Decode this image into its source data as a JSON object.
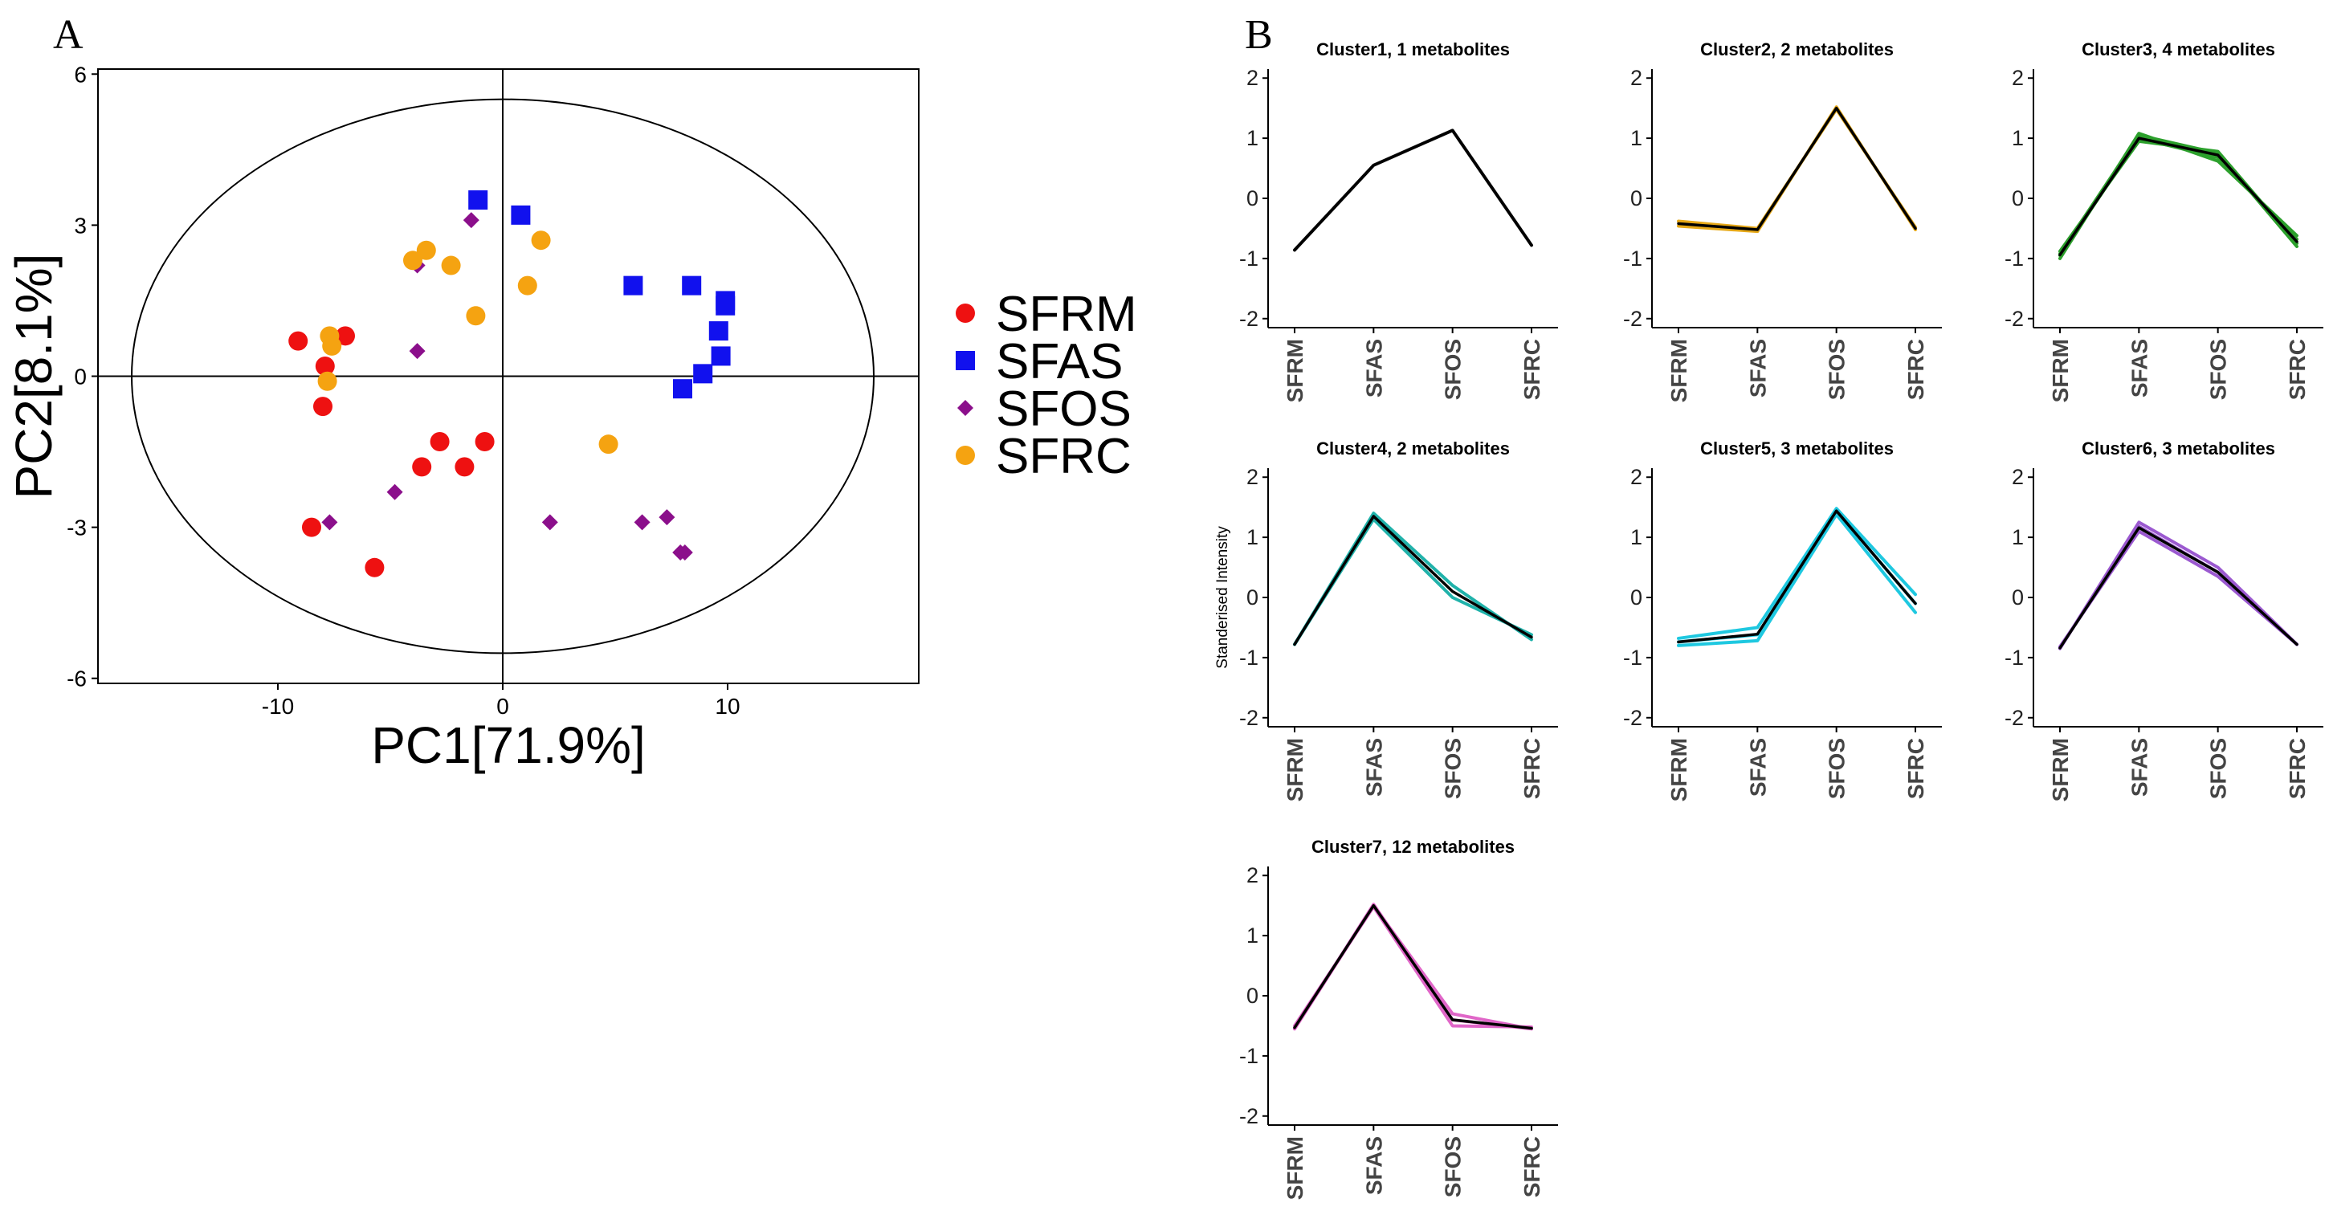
{
  "chart_data": [
    {
      "type": "scatter",
      "panel_label": "A",
      "xlabel": "PC1[71.9%]",
      "ylabel": "PC2[8.1%]",
      "xlim": [
        -18,
        18.5
      ],
      "ylim": [
        -6.1,
        6.1
      ],
      "xticks": [
        -10,
        0,
        10
      ],
      "yticks": [
        -6,
        -3,
        0,
        3,
        6
      ],
      "xtick_labels": [
        "-10",
        "0",
        "10"
      ],
      "ytick_labels": [
        "-6",
        "-3",
        "0",
        "3",
        "6"
      ],
      "ellipse": {
        "rx": 16.5,
        "ry": 5.5
      },
      "legend": [
        "SFRM",
        "SFAS",
        "SFOS",
        "SFRC"
      ],
      "series": [
        {
          "name": "SFRM",
          "color": "#ee1111",
          "marker": "circle",
          "points": [
            [
              -9.1,
              0.7
            ],
            [
              -7,
              0.8
            ],
            [
              -7.9,
              0.2
            ],
            [
              -8,
              -0.6
            ],
            [
              -2.8,
              -1.3
            ],
            [
              -0.8,
              -1.3
            ],
            [
              -3.6,
              -1.8
            ],
            [
              -1.7,
              -1.8
            ],
            [
              -8.5,
              -3.0
            ],
            [
              -5.7,
              -3.8
            ]
          ]
        },
        {
          "name": "SFAS",
          "color": "#1111ee",
          "marker": "square",
          "points": [
            [
              -1.1,
              3.5
            ],
            [
              0.8,
              3.2
            ],
            [
              5.8,
              1.8
            ],
            [
              8.4,
              1.8
            ],
            [
              9.9,
              1.5
            ],
            [
              9.9,
              1.4
            ],
            [
              9.6,
              0.9
            ],
            [
              9.7,
              0.4
            ],
            [
              8.9,
              0.05
            ],
            [
              8.0,
              -0.25
            ]
          ]
        },
        {
          "name": "SFOS",
          "color": "#8b0f8b",
          "marker": "diamond",
          "points": [
            [
              -1.4,
              3.1
            ],
            [
              -3.8,
              2.2
            ],
            [
              -3.8,
              0.5
            ],
            [
              -4.8,
              -2.3
            ],
            [
              -7.7,
              -2.9
            ],
            [
              2.1,
              -2.9
            ],
            [
              6.2,
              -2.9
            ],
            [
              7.3,
              -2.8
            ],
            [
              7.9,
              -3.5
            ],
            [
              8.1,
              -3.5
            ]
          ]
        },
        {
          "name": "SFRC",
          "color": "#f5a311",
          "marker": "circle",
          "points": [
            [
              -3.4,
              2.5
            ],
            [
              -4.0,
              2.3
            ],
            [
              -2.3,
              2.2
            ],
            [
              1.7,
              2.7
            ],
            [
              1.1,
              1.8
            ],
            [
              -1.2,
              1.2
            ],
            [
              -7.7,
              0.8
            ],
            [
              -7.6,
              0.6
            ],
            [
              -7.8,
              -0.1
            ],
            [
              4.7,
              -1.35
            ]
          ]
        }
      ]
    },
    {
      "type": "line",
      "panel_label": "B",
      "title": "Cluster1, 1 metabolites",
      "ylabel": "",
      "categories": [
        "SFRM",
        "SFAS",
        "SFOS",
        "SFRC"
      ],
      "ylim": [
        -2.15,
        2.15
      ],
      "yticks": [
        -2,
        -1,
        0,
        1,
        2
      ],
      "color": "#222222",
      "series": [
        {
          "name": "member",
          "values": [
            -0.86,
            0.55,
            1.13,
            -0.78
          ]
        },
        {
          "name": "mean",
          "values": [
            -0.86,
            0.55,
            1.13,
            -0.78
          ]
        }
      ]
    },
    {
      "type": "line",
      "panel_label": "",
      "title": "Cluster2, 2 metabolites",
      "ylabel": "",
      "categories": [
        "SFRM",
        "SFAS",
        "SFOS",
        "SFRC"
      ],
      "ylim": [
        -2.15,
        2.15
      ],
      "yticks": [
        -2,
        -1,
        0,
        1,
        2
      ],
      "color": "#e6a817",
      "series": [
        {
          "name": "member",
          "values": [
            -0.38,
            -0.5,
            1.48,
            -0.48
          ]
        },
        {
          "name": "member",
          "values": [
            -0.46,
            -0.55,
            1.52,
            -0.52
          ]
        },
        {
          "name": "mean",
          "values": [
            -0.42,
            -0.52,
            1.5,
            -0.5
          ]
        }
      ]
    },
    {
      "type": "line",
      "panel_label": "",
      "title": "Cluster3, 4 metabolites",
      "ylabel": "",
      "categories": [
        "SFRM",
        "SFAS",
        "SFOS",
        "SFRC"
      ],
      "ylim": [
        -2.15,
        2.15
      ],
      "yticks": [
        -2,
        -1,
        0,
        1,
        2
      ],
      "color": "#2ca02c",
      "series": [
        {
          "name": "member",
          "values": [
            -1.0,
            1.08,
            0.62,
            -0.62
          ]
        },
        {
          "name": "member",
          "values": [
            -0.92,
            1.05,
            0.75,
            -0.8
          ]
        },
        {
          "name": "member",
          "values": [
            -0.88,
            0.95,
            0.78,
            -0.75
          ]
        },
        {
          "name": "member",
          "values": [
            -0.95,
            1.0,
            0.68,
            -0.68
          ]
        },
        {
          "name": "mean",
          "values": [
            -0.94,
            1.0,
            0.72,
            -0.72
          ]
        }
      ]
    },
    {
      "type": "line",
      "panel_label": "",
      "title": "Cluster4, 2 metabolites",
      "ylabel": "Standerised Intensity",
      "categories": [
        "SFRM",
        "SFAS",
        "SFOS",
        "SFRC"
      ],
      "ylim": [
        -2.15,
        2.15
      ],
      "yticks": [
        -2,
        -1,
        0,
        1,
        2
      ],
      "color": "#20b2aa",
      "series": [
        {
          "name": "member",
          "values": [
            -0.78,
            1.4,
            0.2,
            -0.7
          ]
        },
        {
          "name": "member",
          "values": [
            -0.78,
            1.3,
            0.0,
            -0.62
          ]
        },
        {
          "name": "mean",
          "values": [
            -0.78,
            1.35,
            0.1,
            -0.66
          ]
        }
      ]
    },
    {
      "type": "line",
      "panel_label": "",
      "title": "Cluster5, 3 metabolites",
      "ylabel": "",
      "categories": [
        "SFRM",
        "SFAS",
        "SFOS",
        "SFRC"
      ],
      "ylim": [
        -2.15,
        2.15
      ],
      "yticks": [
        -2,
        -1,
        0,
        1,
        2
      ],
      "color": "#1ec8e0",
      "series": [
        {
          "name": "member",
          "values": [
            -0.8,
            -0.72,
            1.38,
            -0.25
          ]
        },
        {
          "name": "member",
          "values": [
            -0.68,
            -0.5,
            1.48,
            0.05
          ]
        },
        {
          "name": "member",
          "values": [
            -0.74,
            -0.62,
            1.44,
            -0.1
          ]
        },
        {
          "name": "mean",
          "values": [
            -0.74,
            -0.61,
            1.44,
            -0.1
          ]
        }
      ]
    },
    {
      "type": "line",
      "panel_label": "",
      "title": "Cluster6, 3 metabolites",
      "ylabel": "",
      "categories": [
        "SFRM",
        "SFAS",
        "SFOS",
        "SFRC"
      ],
      "ylim": [
        -2.15,
        2.15
      ],
      "yticks": [
        -2,
        -1,
        0,
        1,
        2
      ],
      "color": "#9b59d0",
      "series": [
        {
          "name": "member",
          "values": [
            -0.85,
            1.25,
            0.5,
            -0.78
          ]
        },
        {
          "name": "member",
          "values": [
            -0.82,
            1.1,
            0.35,
            -0.78
          ]
        },
        {
          "name": "member",
          "values": [
            -0.84,
            1.18,
            0.42,
            -0.78
          ]
        },
        {
          "name": "mean",
          "values": [
            -0.84,
            1.16,
            0.42,
            -0.78
          ]
        }
      ]
    },
    {
      "type": "line",
      "panel_label": "",
      "title": "Cluster7, 12 metabolites",
      "ylabel": "",
      "categories": [
        "SFRM",
        "SFAS",
        "SFOS",
        "SFRC"
      ],
      "ylim": [
        -2.15,
        2.15
      ],
      "yticks": [
        -2,
        -1,
        0,
        1,
        2
      ],
      "color": "#e066c8",
      "series": [
        {
          "name": "member",
          "values": [
            -0.55,
            1.5,
            -0.3,
            -0.55
          ]
        },
        {
          "name": "member",
          "values": [
            -0.5,
            1.48,
            -0.5,
            -0.52
          ]
        },
        {
          "name": "member",
          "values": [
            -0.55,
            1.52,
            -0.4,
            -0.55
          ]
        },
        {
          "name": "mean",
          "values": [
            -0.53,
            1.5,
            -0.4,
            -0.54
          ]
        }
      ]
    }
  ]
}
